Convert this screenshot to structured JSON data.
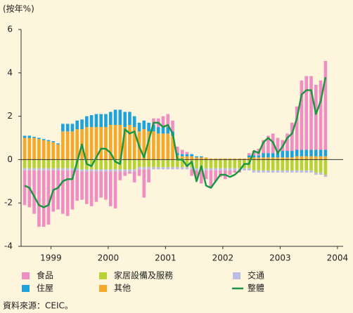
{
  "chart_data": {
    "type": "bar",
    "y_label": "(按年%)",
    "source": "資料來源：CEIC。",
    "x": [
      1999.042,
      1999.125,
      1999.208,
      1999.292,
      1999.375,
      1999.458,
      1999.542,
      1999.625,
      1999.708,
      1999.792,
      1999.875,
      1999.958,
      2000.042,
      2000.125,
      2000.208,
      2000.292,
      2000.375,
      2000.458,
      2000.542,
      2000.625,
      2000.708,
      2000.792,
      2000.875,
      2000.958,
      2001.042,
      2001.125,
      2001.208,
      2001.292,
      2001.375,
      2001.458,
      2001.542,
      2001.625,
      2001.708,
      2001.792,
      2001.875,
      2001.958,
      2002.042,
      2002.125,
      2002.208,
      2002.292,
      2002.375,
      2002.458,
      2002.542,
      2002.625,
      2002.708,
      2002.792,
      2002.875,
      2002.958,
      2003.042,
      2003.125,
      2003.208,
      2003.292,
      2003.375,
      2003.458,
      2003.542,
      2003.625,
      2003.708,
      2003.792,
      2003.875,
      2003.958,
      2004.042,
      2004.125,
      2004.208,
      2004.292
    ],
    "xlim": [
      1998.98,
      2004.6
    ],
    "xticks": [
      {
        "value": 1999.5,
        "label": "1999"
      },
      {
        "value": 2000.5,
        "label": "2000"
      },
      {
        "value": 2001.5,
        "label": "2001"
      },
      {
        "value": 2002.5,
        "label": "2002"
      },
      {
        "value": 2003.5,
        "label": "2003"
      },
      {
        "value": 2004.5,
        "label": "2004"
      }
    ],
    "ylim": [
      -4,
      6
    ],
    "yticks": [
      -4,
      -2,
      0,
      2,
      4,
      6
    ],
    "series": [
      {
        "name": "食品",
        "color": "#f08dc2",
        "values": [
          -1.6,
          -1.7,
          -2.0,
          -2.6,
          -2.6,
          -2.5,
          -1.9,
          -1.8,
          -2.0,
          -2.1,
          -1.8,
          -1.4,
          -1.3,
          -1.5,
          -1.6,
          -1.4,
          -1.2,
          -1.3,
          -1.6,
          -1.7,
          -0.4,
          -0.2,
          -0.1,
          -0.5,
          -0.3,
          -1.3,
          -0.6,
          0.3,
          0.4,
          0.5,
          0.6,
          0.5,
          0.3,
          0.2,
          0.1,
          -0.3,
          -0.4,
          -0.6,
          -0.4,
          -0.8,
          -0.5,
          -0.3,
          -0.4,
          -0.2,
          -0.1,
          -0.1,
          0.0,
          0.1,
          0.2,
          0.3,
          0.6,
          0.8,
          0.9,
          0.7,
          0.5,
          0.8,
          1.3,
          2.0,
          3.2,
          3.4,
          3.4,
          3.0,
          3.2,
          4.1
        ]
      },
      {
        "name": "住屋",
        "color": "#1ea2dc",
        "values": [
          0.1,
          0.1,
          0.05,
          0.05,
          0.05,
          0.05,
          0.05,
          0.05,
          0.35,
          0.35,
          0.35,
          0.4,
          0.45,
          0.5,
          0.55,
          0.6,
          0.6,
          0.6,
          0.6,
          0.7,
          0.7,
          0.7,
          0.6,
          0.5,
          0.4,
          0.4,
          0.4,
          0.3,
          0.3,
          0.3,
          0.3,
          0.2,
          0.1,
          0.1,
          0.1,
          0.1,
          0.05,
          0.05,
          0.0,
          0.0,
          0.0,
          0.0,
          0.0,
          0.0,
          0.0,
          0.0,
          0.0,
          0.1,
          0.1,
          0.1,
          0.2,
          0.2,
          0.2,
          0.2,
          0.3,
          0.3,
          0.3,
          0.3,
          0.3,
          0.3,
          0.3,
          0.3,
          0.3,
          0.3
        ]
      },
      {
        "name": "家居設備及服務",
        "color": "#b7d234",
        "values": [
          -0.4,
          -0.4,
          -0.4,
          -0.4,
          -0.4,
          -0.4,
          -0.4,
          -0.4,
          -0.4,
          -0.4,
          -0.4,
          -0.4,
          -0.45,
          -0.45,
          -0.45,
          -0.45,
          -0.45,
          -0.45,
          -0.45,
          -0.45,
          -0.45,
          -0.45,
          -0.45,
          -0.45,
          -0.35,
          -0.35,
          -0.35,
          -0.35,
          -0.35,
          -0.35,
          -0.35,
          -0.35,
          -0.35,
          -0.35,
          -0.35,
          -0.35,
          -0.4,
          -0.4,
          -0.4,
          -0.4,
          -0.4,
          -0.4,
          -0.4,
          -0.4,
          -0.4,
          -0.4,
          -0.4,
          -0.4,
          -0.5,
          -0.5,
          -0.5,
          -0.5,
          -0.5,
          -0.5,
          -0.5,
          -0.5,
          -0.5,
          -0.5,
          -0.5,
          -0.5,
          -0.5,
          -0.6,
          -0.6,
          -0.7
        ]
      },
      {
        "name": "其他",
        "color": "#f5a82a",
        "values": [
          1.0,
          1.0,
          1.0,
          0.95,
          0.9,
          0.85,
          0.8,
          0.7,
          1.3,
          1.3,
          1.3,
          1.4,
          1.4,
          1.5,
          1.5,
          1.5,
          1.5,
          1.5,
          1.6,
          1.6,
          1.6,
          1.5,
          1.6,
          1.5,
          1.3,
          1.4,
          1.3,
          1.3,
          1.2,
          1.2,
          1.2,
          1.1,
          0.2,
          0.15,
          0.15,
          0.15,
          0.1,
          0.1,
          0.1,
          0.05,
          0.05,
          0.05,
          0.05,
          0.05,
          0.05,
          0.05,
          0.05,
          0.1,
          0.1,
          0.1,
          0.1,
          0.1,
          0.1,
          0.1,
          0.1,
          0.1,
          0.1,
          0.15,
          0.15,
          0.15,
          0.15,
          0.15,
          0.15,
          0.15
        ]
      },
      {
        "name": "交通",
        "color": "#bcbde3",
        "values": [
          -0.1,
          -0.1,
          -0.1,
          -0.1,
          -0.1,
          -0.1,
          -0.1,
          -0.1,
          -0.1,
          -0.1,
          -0.1,
          -0.1,
          -0.1,
          -0.1,
          -0.1,
          -0.1,
          -0.1,
          -0.1,
          -0.1,
          -0.1,
          -0.1,
          -0.1,
          -0.1,
          -0.1,
          -0.1,
          -0.1,
          -0.1,
          -0.1,
          -0.1,
          -0.1,
          -0.1,
          -0.1,
          -0.1,
          -0.1,
          -0.1,
          -0.1,
          -0.1,
          -0.1,
          -0.1,
          -0.1,
          -0.1,
          -0.1,
          -0.1,
          -0.1,
          -0.1,
          -0.1,
          -0.1,
          -0.1,
          -0.1,
          -0.1,
          -0.1,
          -0.1,
          -0.1,
          -0.1,
          -0.1,
          -0.1,
          -0.1,
          -0.1,
          -0.1,
          -0.1,
          -0.1,
          -0.1,
          -0.1,
          -0.1
        ]
      },
      {
        "name": "整體",
        "color": "#1a9645",
        "type": "line",
        "values": [
          -1.2,
          -1.3,
          -1.7,
          -2.1,
          -2.2,
          -2.1,
          -1.4,
          -1.3,
          -1.0,
          -0.9,
          -0.9,
          -0.1,
          0.7,
          -0.2,
          -0.3,
          0.1,
          0.5,
          0.5,
          0.3,
          -0.1,
          -0.2,
          1.4,
          1.2,
          1.3,
          0.6,
          0.1,
          0.9,
          1.7,
          1.7,
          1.5,
          1.6,
          1.2,
          0.0,
          0.0,
          -0.3,
          -0.1,
          -1.0,
          -0.3,
          -1.2,
          -1.3,
          -1.0,
          -0.7,
          -0.7,
          -0.8,
          -0.7,
          -0.5,
          -0.2,
          -0.2,
          0.4,
          0.3,
          0.8,
          1.0,
          0.8,
          0.3,
          0.6,
          1.0,
          1.2,
          1.9,
          3.0,
          3.2,
          3.2,
          2.1,
          2.7,
          3.8
        ]
      }
    ]
  }
}
